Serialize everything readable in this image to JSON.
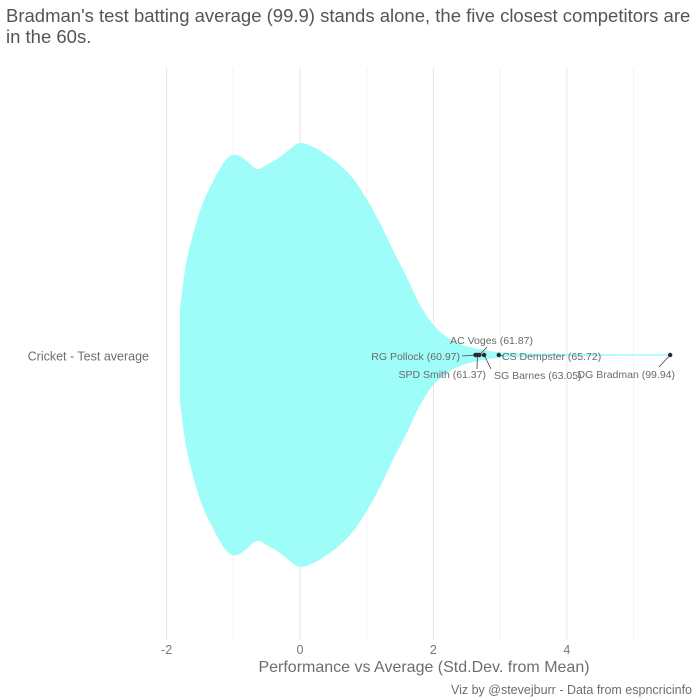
{
  "title": "Bradman's test batting average (99.9) stands alone, the five closest competitors are in the 60s.",
  "caption": "Viz by @stevejburr - Data from espncricinfo",
  "chart_data": {
    "type": "violin",
    "title": "Bradman's test batting average (99.9) stands alone, the five closest competitors are in the 60s.",
    "xlabel": "Performance vs Average (Std.Dev. from Mean)",
    "ylabel": "",
    "xlim": [
      -2,
      5.6
    ],
    "xticks": [
      -2,
      0,
      2,
      4
    ],
    "grid": true,
    "category": "Cricket - Test average",
    "fill_color": "#9efcf9",
    "density_profile": [
      {
        "x": -1.8,
        "d": 0.23
      },
      {
        "x": -1.7,
        "d": 0.47
      },
      {
        "x": -1.5,
        "d": 0.72
      },
      {
        "x": -1.3,
        "d": 0.87
      },
      {
        "x": -1.1,
        "d": 0.98
      },
      {
        "x": -0.95,
        "d": 1.0
      },
      {
        "x": -0.8,
        "d": 0.97
      },
      {
        "x": -0.65,
        "d": 0.93
      },
      {
        "x": -0.5,
        "d": 0.95
      },
      {
        "x": -0.3,
        "d": 0.99
      },
      {
        "x": -0.15,
        "d": 1.03
      },
      {
        "x": 0.0,
        "d": 1.06
      },
      {
        "x": 0.2,
        "d": 1.04
      },
      {
        "x": 0.4,
        "d": 1.0
      },
      {
        "x": 0.6,
        "d": 0.95
      },
      {
        "x": 0.8,
        "d": 0.88
      },
      {
        "x": 1.0,
        "d": 0.78
      },
      {
        "x": 1.2,
        "d": 0.66
      },
      {
        "x": 1.4,
        "d": 0.52
      },
      {
        "x": 1.6,
        "d": 0.39
      },
      {
        "x": 1.8,
        "d": 0.25
      },
      {
        "x": 2.0,
        "d": 0.15
      },
      {
        "x": 2.2,
        "d": 0.09
      },
      {
        "x": 2.4,
        "d": 0.055
      },
      {
        "x": 2.6,
        "d": 0.035
      },
      {
        "x": 2.8,
        "d": 0.022
      },
      {
        "x": 3.0,
        "d": 0.014
      },
      {
        "x": 3.3,
        "d": 0.009
      },
      {
        "x": 3.7,
        "d": 0.006
      },
      {
        "x": 4.2,
        "d": 0.005
      },
      {
        "x": 4.8,
        "d": 0.004
      },
      {
        "x": 5.3,
        "d": 0.004
      },
      {
        "x": 5.55,
        "d": 0.004
      }
    ],
    "points": [
      {
        "label": "DG Bradman (99.94)",
        "x": 5.55
      },
      {
        "label": "CS Dempster (65.72)",
        "x": 2.98
      },
      {
        "label": "SG Barnes (63.05)",
        "x": 2.76
      },
      {
        "label": "AC Voges (61.87)",
        "x": 2.69
      },
      {
        "label": "SPD Smith (61.37)",
        "x": 2.66
      },
      {
        "label": "RG Pollock (60.97)",
        "x": 2.63
      }
    ]
  }
}
